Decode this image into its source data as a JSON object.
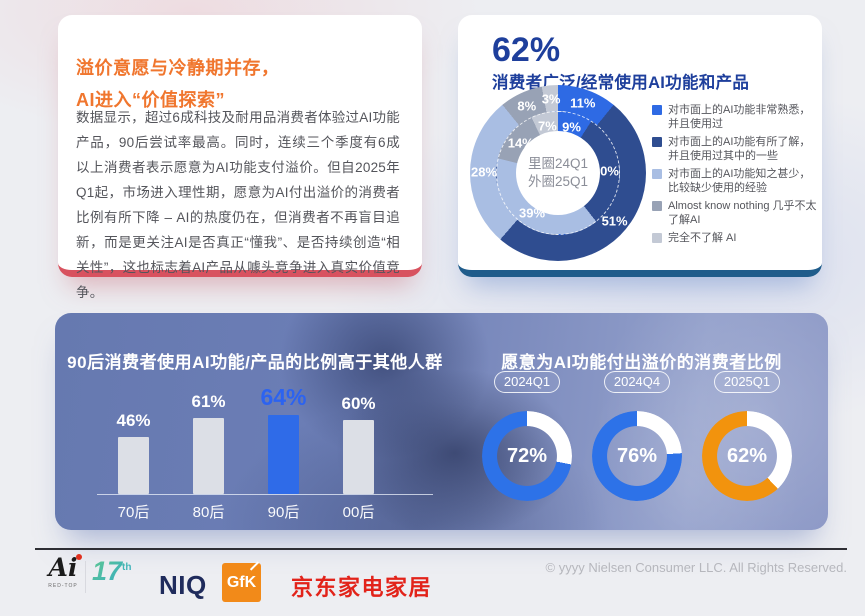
{
  "left_card": {
    "title_line1": "溢价意愿与冷静期并存，",
    "title_line2": "AI进入“价值探索”",
    "body": "数据显示，超过6成科技及耐用品消费者体验过AI功能产品，90后尝试率最高。同时，连续三个季度有6成以上消费者表示愿意为AI功能支付溢价。但自2025年Q1起，市场进入理性期，愿意为AI付出溢价的消费者比例有所下降 – AI的热度仍在，但消费者不再盲目追新，而是更关注AI是否真正“懂我”、是否持续创造“相关性”，这也标志着AI产品从噱头竞争进入真实价值竞争。",
    "accent_color": "#D8525F",
    "title_color": "#F0762E"
  },
  "right_card": {
    "headline_value": "62%",
    "headline_label": "消费者广泛/经常使用AI功能和产品",
    "center_line1": "里圈24Q1",
    "center_line2": "外圈25Q1",
    "accent_color": "#1F5C8B"
  },
  "chart_data": [
    {
      "type": "pie",
      "variant": "double-donut",
      "title": "消费者广泛/经常使用AI功能和产品",
      "center_label": [
        "里圈24Q1",
        "外圈25Q1"
      ],
      "legend_position": "right",
      "legend": [
        "对市面上的AI功能非常熟悉，并且使用过",
        "对市面上的AI功能有所了解，并且使用过其中的一些",
        "对市面上的AI功能知之甚少，比较缺少使用的经验",
        "Almost know nothing 几乎不太了解AI",
        "完全不了解 AI"
      ],
      "colors": [
        "#2E6AE4",
        "#2F4D90",
        "#A9BEE3",
        "#98A2B5",
        "#C3C9D5"
      ],
      "rings": [
        {
          "name": "外圈 2025Q1",
          "values": [
            11,
            51,
            28,
            8,
            3
          ]
        },
        {
          "name": "里圈 2024Q1",
          "values": [
            9,
            30,
            39,
            14,
            7
          ]
        }
      ],
      "unit": "%"
    },
    {
      "type": "bar",
      "title": "90后消费者使用AI功能/产品的比例高于其他人群",
      "categories": [
        "70后",
        "80后",
        "90后",
        "00后"
      ],
      "values": [
        46,
        61,
        64,
        60
      ],
      "unit": "%",
      "highlight_index": 2,
      "bar_color": "#DCDFE6",
      "highlight_color": "#2F6BE8",
      "ylim": [
        0,
        100
      ],
      "grid": false
    },
    {
      "type": "pie",
      "variant": "progress-rings",
      "title": "愿意为AI功能付出溢价的消费者比例",
      "categories": [
        "2024Q1",
        "2024Q4",
        "2025Q1"
      ],
      "values": [
        72,
        76,
        62
      ],
      "unit": "%",
      "colors": [
        "#2D72E8",
        "#2D72E8",
        "#F2930D"
      ],
      "track_color": "#FFFFFF"
    }
  ],
  "footer": {
    "redtop_mark": "Ai",
    "redtop_sub": "RED-TOP",
    "year": "17",
    "year_suffix": "th",
    "niq": "NIQ",
    "gfk": "GfK",
    "jd": "京东家电家居",
    "copyright": "© yyyy Nielsen Consumer LLC. All Rights Reserved."
  }
}
